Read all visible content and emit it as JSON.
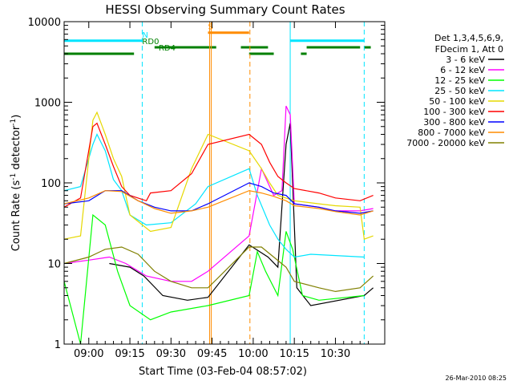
{
  "chart_data": {
    "type": "line",
    "title": "HESSI Observing Summary Count Rates",
    "xlabel": "Start Time (03-Feb-04 08:57:02)",
    "ylabel_main": "Count Rate (s",
    "ylabel_sup1": "-1",
    "ylabel_mid": " detector",
    "ylabel_sup2": "-1",
    "ylabel_end": ")",
    "timestamp": "26-Mar-2010 08:25",
    "y_scale": "log",
    "ylim": [
      1,
      10000
    ],
    "xlim_minutes": [
      -3,
      36
    ],
    "x_ticks": [
      {
        "m": 0,
        "label": "09:00"
      },
      {
        "m": 5,
        "label": "09:15"
      },
      {
        "m": 10,
        "label": "09:30"
      },
      {
        "m": 15,
        "label": "09:45"
      },
      {
        "m": 20,
        "label": "10:00"
      },
      {
        "m": 25,
        "label": "10:15"
      },
      {
        "m": 30,
        "label": "10:30"
      }
    ],
    "y_ticks": [
      {
        "v": 1,
        "label": "1"
      },
      {
        "v": 10,
        "label": "10"
      },
      {
        "v": 100,
        "label": "100"
      },
      {
        "v": 1000,
        "label": "1000"
      },
      {
        "v": 10000,
        "label": "10000"
      }
    ],
    "legend_header": [
      "Det 1,3,4,5,6,9,",
      "FDecim 1, Att 0"
    ],
    "legend_position": "right",
    "flags": [
      {
        "name": "N",
        "color": "#00e5ff",
        "segments": [
          [
            -3,
            6.5
          ],
          [
            24.5,
            33.5
          ]
        ],
        "level": 5800,
        "label_at": 6.5
      },
      {
        "name": "S",
        "color": "#ff8c00",
        "segments": [
          [
            14.5,
            19.5
          ]
        ],
        "level": 7300,
        "label_at": 14.5
      },
      {
        "name": "RD0",
        "color": "#008000",
        "segments": [
          [
            8,
            15.5
          ],
          [
            18.5,
            21.8
          ],
          [
            26.5,
            33
          ],
          [
            33.5,
            34.3
          ]
        ],
        "level": 4800,
        "label_at": 6.5
      },
      {
        "name": "RD4",
        "color": "#008000",
        "segments": [
          [
            -3,
            5.5
          ],
          [
            19.5,
            22.5
          ],
          [
            25.8,
            26.5
          ]
        ],
        "level": 4000,
        "label_at": 8.5
      }
    ],
    "vlines": [
      {
        "m": -3,
        "color": "#00e5ff",
        "dash": false
      },
      {
        "m": 6.5,
        "color": "#00e5ff",
        "dash": true
      },
      {
        "m": 14.7,
        "color": "#ff8c00",
        "dash": false
      },
      {
        "m": 14.9,
        "color": "#ff8c00",
        "dash": false
      },
      {
        "m": 19.6,
        "color": "#ff8c00",
        "dash": true
      },
      {
        "m": 24.5,
        "color": "#00e5ff",
        "dash": false
      },
      {
        "m": 33.5,
        "color": "#00e5ff",
        "dash": true
      }
    ],
    "series": [
      {
        "name": "3 - 6 keV",
        "color": "#000000",
        "points": [
          [
            2.5,
            10
          ],
          [
            5,
            9
          ],
          [
            6.7,
            7
          ],
          [
            9,
            4
          ],
          [
            12,
            3.5
          ],
          [
            14.5,
            3.8
          ],
          [
            19.5,
            17
          ],
          [
            21.8,
            12
          ],
          [
            23,
            9
          ],
          [
            24,
            300
          ],
          [
            24.5,
            550
          ],
          [
            25.3,
            5
          ],
          [
            27,
            3
          ],
          [
            33.5,
            4
          ],
          [
            34.6,
            5
          ]
        ]
      },
      {
        "name": "6 - 12 keV",
        "color": "#ff00ff",
        "points": [
          [
            -3,
            10
          ],
          [
            0,
            11
          ],
          [
            2.5,
            12
          ],
          [
            4.5,
            10
          ],
          [
            7,
            7
          ],
          [
            10,
            6
          ],
          [
            12.5,
            6
          ],
          [
            14.5,
            8
          ],
          [
            19.5,
            22
          ],
          [
            21,
            150
          ],
          [
            22.5,
            70
          ],
          [
            23.5,
            80
          ],
          [
            24,
            900
          ],
          [
            24.5,
            700
          ],
          [
            25,
            55
          ],
          [
            28,
            50
          ],
          [
            30,
            45
          ],
          [
            33,
            45
          ],
          [
            34.6,
            48
          ]
        ]
      },
      {
        "name": "12 - 25 keV",
        "color": "#00ff00",
        "points": [
          [
            -3,
            6
          ],
          [
            -1,
            1
          ],
          [
            0.5,
            40
          ],
          [
            2,
            30
          ],
          [
            3.5,
            8
          ],
          [
            5,
            3
          ],
          [
            7.5,
            2
          ],
          [
            10,
            2.5
          ],
          [
            14.5,
            3
          ],
          [
            19.5,
            4
          ],
          [
            20.5,
            14
          ],
          [
            21.5,
            8
          ],
          [
            23,
            4
          ],
          [
            24,
            25
          ],
          [
            24.8,
            15
          ],
          [
            26,
            4
          ],
          [
            28,
            3.5
          ],
          [
            33.5,
            4
          ]
        ]
      },
      {
        "name": "25 - 50 keV",
        "color": "#00e5ff",
        "points": [
          [
            -3,
            80
          ],
          [
            -1,
            90
          ],
          [
            0.5,
            300
          ],
          [
            1,
            400
          ],
          [
            2,
            250
          ],
          [
            3,
            110
          ],
          [
            4,
            80
          ],
          [
            5,
            40
          ],
          [
            7,
            30
          ],
          [
            10,
            32
          ],
          [
            13,
            55
          ],
          [
            14.5,
            90
          ],
          [
            19.5,
            150
          ],
          [
            20.5,
            70
          ],
          [
            22,
            30
          ],
          [
            23,
            20
          ],
          [
            24,
            15
          ],
          [
            25,
            12
          ],
          [
            27,
            13
          ],
          [
            33.5,
            12
          ]
        ]
      },
      {
        "name": "50 - 100 keV",
        "color": "#e6d800",
        "points": [
          [
            -3,
            20
          ],
          [
            -1,
            22
          ],
          [
            0.5,
            600
          ],
          [
            1,
            750
          ],
          [
            2,
            400
          ],
          [
            3,
            200
          ],
          [
            4,
            120
          ],
          [
            5,
            40
          ],
          [
            7.5,
            25
          ],
          [
            10,
            28
          ],
          [
            12.5,
            150
          ],
          [
            14.5,
            400
          ],
          [
            19.5,
            250
          ],
          [
            21,
            150
          ],
          [
            22,
            100
          ],
          [
            23,
            70
          ],
          [
            25,
            60
          ],
          [
            28,
            55
          ],
          [
            30,
            52
          ],
          [
            33,
            50
          ],
          [
            33.5,
            20
          ],
          [
            34.6,
            22
          ]
        ]
      },
      {
        "name": "100 - 300 keV",
        "color": "#ff0000",
        "points": [
          [
            -3,
            50
          ],
          [
            -1,
            65
          ],
          [
            0.5,
            500
          ],
          [
            1,
            550
          ],
          [
            2,
            300
          ],
          [
            3,
            160
          ],
          [
            4,
            90
          ],
          [
            5,
            70
          ],
          [
            7,
            60
          ],
          [
            7.5,
            75
          ],
          [
            10,
            80
          ],
          [
            12.5,
            130
          ],
          [
            14.5,
            300
          ],
          [
            19.5,
            400
          ],
          [
            21,
            300
          ],
          [
            22,
            180
          ],
          [
            23,
            120
          ],
          [
            24,
            100
          ],
          [
            25,
            85
          ],
          [
            28,
            75
          ],
          [
            30,
            65
          ],
          [
            33,
            60
          ],
          [
            34.6,
            70
          ]
        ]
      },
      {
        "name": "300 - 800 keV",
        "color": "#0000ff",
        "points": [
          [
            -3,
            55
          ],
          [
            0,
            60
          ],
          [
            2,
            80
          ],
          [
            4,
            80
          ],
          [
            6,
            60
          ],
          [
            8,
            50
          ],
          [
            10,
            45
          ],
          [
            12.5,
            45
          ],
          [
            14.5,
            55
          ],
          [
            19.5,
            100
          ],
          [
            21,
            90
          ],
          [
            22.5,
            75
          ],
          [
            24,
            70
          ],
          [
            25,
            55
          ],
          [
            28,
            50
          ],
          [
            30,
            45
          ],
          [
            33,
            42
          ],
          [
            34.6,
            45
          ]
        ]
      },
      {
        "name": "800 - 7000 keV",
        "color": "#ff8c00",
        "points": [
          [
            -3,
            55
          ],
          [
            0,
            65
          ],
          [
            2,
            80
          ],
          [
            4,
            78
          ],
          [
            6,
            60
          ],
          [
            8,
            48
          ],
          [
            10,
            42
          ],
          [
            12.5,
            45
          ],
          [
            14.5,
            50
          ],
          [
            19.5,
            80
          ],
          [
            21,
            75
          ],
          [
            22.5,
            68
          ],
          [
            24,
            60
          ],
          [
            25,
            52
          ],
          [
            28,
            48
          ],
          [
            30,
            44
          ],
          [
            33,
            40
          ],
          [
            34.6,
            45
          ]
        ]
      },
      {
        "name": "7000 - 20000 keV",
        "color": "#808000",
        "points": [
          [
            -3,
            10
          ],
          [
            0,
            12
          ],
          [
            2,
            15
          ],
          [
            4,
            16
          ],
          [
            6,
            13
          ],
          [
            8,
            8
          ],
          [
            10,
            6
          ],
          [
            12.5,
            5
          ],
          [
            14.5,
            5
          ],
          [
            19.5,
            16
          ],
          [
            21,
            16
          ],
          [
            22.5,
            12
          ],
          [
            24,
            9
          ],
          [
            25,
            6
          ],
          [
            28,
            5
          ],
          [
            30,
            4.5
          ],
          [
            33,
            5
          ],
          [
            34.6,
            7
          ]
        ]
      }
    ]
  }
}
